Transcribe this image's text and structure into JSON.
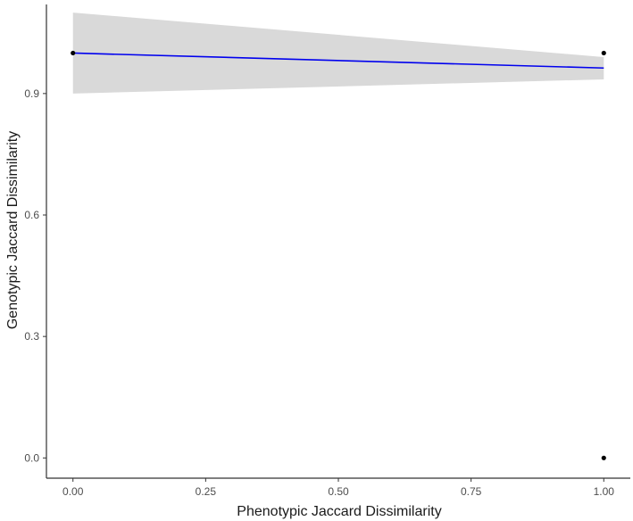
{
  "chart_data": {
    "type": "scatter",
    "title": "",
    "xlabel": "Phenotypic Jaccard Dissimilarity",
    "ylabel": "Genotypic Jaccard Dissimilarity",
    "xlim": [
      -0.05,
      1.05
    ],
    "ylim": [
      -0.05,
      1.12
    ],
    "x_ticks": [
      0.0,
      0.25,
      0.5,
      0.75,
      1.0
    ],
    "x_tick_labels": [
      "0.00",
      "0.25",
      "0.50",
      "0.75",
      "1.00"
    ],
    "y_ticks": [
      0.0,
      0.3,
      0.6,
      0.9
    ],
    "y_tick_labels": [
      "0.0",
      "0.3",
      "0.6",
      "0.9"
    ],
    "grid": false,
    "points": [
      {
        "x": 0.0,
        "y": 1.0
      },
      {
        "x": 1.0,
        "y": 1.0
      },
      {
        "x": 1.0,
        "y": 0.0
      }
    ],
    "trend_line": {
      "method": "linear fit",
      "x": [
        0.0,
        1.0
      ],
      "y": [
        1.0,
        0.963
      ],
      "color": "#0000ee"
    },
    "confidence_band": {
      "x": [
        0.0,
        1.0
      ],
      "lower": [
        0.9,
        0.935
      ],
      "upper": [
        1.1,
        0.99
      ],
      "color": "#d9d9d9"
    },
    "point_color": "#000000",
    "axis_color": "#333333"
  }
}
